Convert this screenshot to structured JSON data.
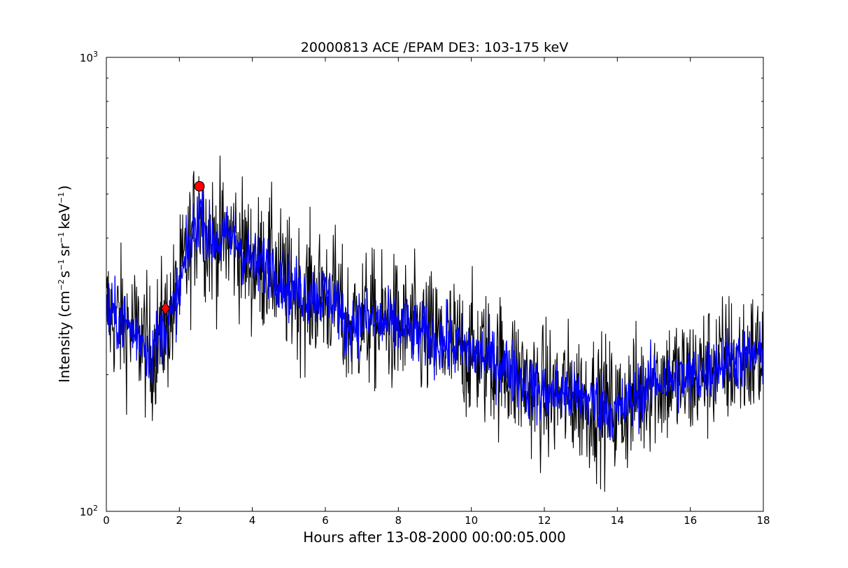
{
  "chart_data": {
    "type": "line",
    "title": "20000813 ACE /EPAM DE3: 103-175 keV",
    "xlabel": "Hours after 13-08-2000 00:00:05.000",
    "ylabel": {
      "base": "Intensity (cm",
      "e1": "−2",
      "t2": "s",
      "e2": "−1",
      "t3": "sr",
      "e3": "−1",
      "t4": "keV",
      "e4": "−1",
      "t5": ")"
    },
    "x_ticks": [
      "0",
      "2",
      "4",
      "6",
      "8",
      "10",
      "12",
      "14",
      "16",
      "18"
    ],
    "y_ticks": [
      {
        "base": "10",
        "exp": "2"
      },
      {
        "base": "10",
        "exp": "3"
      }
    ],
    "xlim": [
      0,
      18
    ],
    "ylim": [
      100,
      1000
    ],
    "y_scale": "log",
    "grid": false,
    "series": [
      {
        "color": "#000000",
        "style": "raw-noisy",
        "x": [
          0,
          0.5,
          1.0,
          1.2,
          1.5,
          1.8,
          2.0,
          2.3,
          2.55,
          2.8,
          3.0,
          3.5,
          4.0,
          4.5,
          5.0,
          5.5,
          6.0,
          6.3,
          6.5,
          7.0,
          7.5,
          8.0,
          9.0,
          10.0,
          11.0,
          11.5,
          12.0,
          12.5,
          13.0,
          13.5,
          14.0,
          14.5,
          15.0,
          16.0,
          17.0,
          18.0
        ],
        "y": [
          275,
          260,
          240,
          220,
          250,
          270,
          310,
          385,
          465,
          400,
          395,
          400,
          350,
          350,
          310,
          300,
          300,
          295,
          255,
          265,
          260,
          255,
          238,
          225,
          208,
          190,
          180,
          182,
          178,
          173,
          165,
          178,
          195,
          195,
          215,
          220
        ]
      },
      {
        "color": "#0000ff",
        "style": "smoothed",
        "x": [
          0,
          0.5,
          1.0,
          1.2,
          1.5,
          1.8,
          2.0,
          2.3,
          2.55,
          2.8,
          3.0,
          3.5,
          4.0,
          4.5,
          5.0,
          5.5,
          6.0,
          6.3,
          6.5,
          7.0,
          7.5,
          8.0,
          9.0,
          10.0,
          11.0,
          11.5,
          12.0,
          12.5,
          13.0,
          13.5,
          14.0,
          14.5,
          15.0,
          16.0,
          17.0,
          18.0
        ],
        "y": [
          275,
          260,
          240,
          220,
          250,
          270,
          310,
          385,
          465,
          400,
          395,
          400,
          350,
          350,
          310,
          300,
          300,
          295,
          255,
          265,
          260,
          255,
          238,
          225,
          208,
          190,
          180,
          182,
          178,
          173,
          165,
          178,
          195,
          195,
          215,
          220
        ]
      }
    ],
    "markers": [
      {
        "shape": "diamond",
        "color": "#ff0000",
        "x": 1.62,
        "y": 280
      },
      {
        "shape": "circle",
        "color": "#ff0000",
        "x": 2.55,
        "y": 520
      }
    ]
  }
}
